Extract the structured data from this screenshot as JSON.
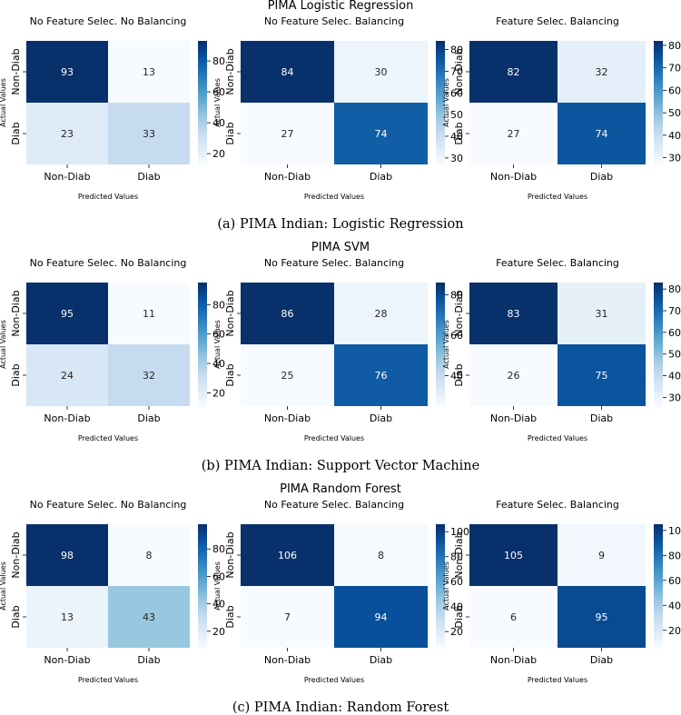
{
  "rows": [
    {
      "title": "PIMA Logistic Regression",
      "caption": "(a) PIMA Indian: Logistic Regression",
      "panels": [
        {
          "title": "No Feature Selec. No Balancing",
          "matrix": [
            [
              93,
              13
            ],
            [
              23,
              33
            ]
          ],
          "colorbar_ticks": [
            20,
            40,
            60,
            80
          ],
          "vmin": 13,
          "vmax": 93
        },
        {
          "title": "No Feature Selec. Balancing",
          "matrix": [
            [
              84,
              30
            ],
            [
              27,
              74
            ]
          ],
          "colorbar_ticks": [
            30,
            40,
            50,
            60,
            70,
            80
          ],
          "vmin": 27,
          "vmax": 84
        },
        {
          "title": "Feature Selec. Balancing",
          "matrix": [
            [
              82,
              32
            ],
            [
              27,
              74
            ]
          ],
          "colorbar_ticks": [
            30,
            40,
            50,
            60,
            70,
            80
          ],
          "vmin": 27,
          "vmax": 82
        }
      ]
    },
    {
      "title": "PIMA SVM",
      "caption": "(b) PIMA Indian: Support Vector Machine",
      "panels": [
        {
          "title": "No Feature Selec. No Balancing",
          "matrix": [
            [
              95,
              11
            ],
            [
              24,
              32
            ]
          ],
          "colorbar_ticks": [
            20,
            40,
            60,
            80
          ],
          "vmin": 11,
          "vmax": 95
        },
        {
          "title": "No Feature Selec. Balancing",
          "matrix": [
            [
              86,
              28
            ],
            [
              25,
              76
            ]
          ],
          "colorbar_ticks": [
            40,
            60,
            80
          ],
          "vmin": 25,
          "vmax": 86
        },
        {
          "title": "Feature Selec. Balancing",
          "matrix": [
            [
              83,
              31
            ],
            [
              26,
              75
            ]
          ],
          "colorbar_ticks": [
            30,
            40,
            50,
            60,
            70,
            80
          ],
          "vmin": 26,
          "vmax": 83
        }
      ]
    },
    {
      "title": "PIMA Random Forest",
      "caption": "(c) PIMA Indian: Random Forest",
      "panels": [
        {
          "title": "No Feature Selec. No Balancing",
          "matrix": [
            [
              98,
              8
            ],
            [
              13,
              43
            ]
          ],
          "colorbar_ticks": [
            20,
            40,
            60,
            80
          ],
          "vmin": 8,
          "vmax": 98
        },
        {
          "title": "No Feature Selec. Balancing",
          "matrix": [
            [
              106,
              8
            ],
            [
              7,
              94
            ]
          ],
          "colorbar_ticks": [
            20,
            40,
            60,
            80,
            100
          ],
          "vmin": 7,
          "vmax": 106
        },
        {
          "title": "Feature Selec. Balancing",
          "matrix": [
            [
              105,
              9
            ],
            [
              6,
              95
            ]
          ],
          "colorbar_ticks": [
            20,
            40,
            60,
            80,
            100
          ],
          "vmin": 6,
          "vmax": 105
        }
      ]
    }
  ],
  "labels": {
    "categories": [
      "Non-Diab",
      "Diab"
    ],
    "xlabel": "Predicted Values",
    "ylabel": "Actual Values"
  },
  "colors": {
    "cmap_low": "#f7fbff",
    "cmap_high": "#08306b",
    "text_dark": "#262626",
    "text_light": "#ffffff"
  },
  "chart_data": [
    {
      "type": "heatmap",
      "title": "PIMA Logistic Regression — No Feature Selec. No Balancing",
      "xlabel": "Predicted Values",
      "ylabel": "Actual Values",
      "categories": [
        "Non-Diab",
        "Diab"
      ],
      "values": [
        [
          93,
          13
        ],
        [
          23,
          33
        ]
      ]
    },
    {
      "type": "heatmap",
      "title": "PIMA Logistic Regression — No Feature Selec. Balancing",
      "xlabel": "Predicted Values",
      "ylabel": "Actual Values",
      "categories": [
        "Non-Diab",
        "Diab"
      ],
      "values": [
        [
          84,
          30
        ],
        [
          27,
          74
        ]
      ]
    },
    {
      "type": "heatmap",
      "title": "PIMA Logistic Regression — Feature Selec. Balancing",
      "xlabel": "Predicted Values",
      "ylabel": "Actual Values",
      "categories": [
        "Non-Diab",
        "Diab"
      ],
      "values": [
        [
          82,
          32
        ],
        [
          27,
          74
        ]
      ]
    },
    {
      "type": "heatmap",
      "title": "PIMA SVM — No Feature Selec. No Balancing",
      "xlabel": "Predicted Values",
      "ylabel": "Actual Values",
      "categories": [
        "Non-Diab",
        "Diab"
      ],
      "values": [
        [
          95,
          11
        ],
        [
          24,
          32
        ]
      ]
    },
    {
      "type": "heatmap",
      "title": "PIMA SVM — No Feature Selec. Balancing",
      "xlabel": "Predicted Values",
      "ylabel": "Actual Values",
      "categories": [
        "Non-Diab",
        "Diab"
      ],
      "values": [
        [
          86,
          28
        ],
        [
          25,
          76
        ]
      ]
    },
    {
      "type": "heatmap",
      "title": "PIMA SVM — Feature Selec. Balancing",
      "xlabel": "Predicted Values",
      "ylabel": "Actual Values",
      "categories": [
        "Non-Diab",
        "Diab"
      ],
      "values": [
        [
          83,
          31
        ],
        [
          26,
          75
        ]
      ]
    },
    {
      "type": "heatmap",
      "title": "PIMA Random Forest — No Feature Selec. No Balancing",
      "xlabel": "Predicted Values",
      "ylabel": "Actual Values",
      "categories": [
        "Non-Diab",
        "Diab"
      ],
      "values": [
        [
          98,
          8
        ],
        [
          13,
          43
        ]
      ]
    },
    {
      "type": "heatmap",
      "title": "PIMA Random Forest — No Feature Selec. Balancing",
      "xlabel": "Predicted Values",
      "ylabel": "Actual Values",
      "categories": [
        "Non-Diab",
        "Diab"
      ],
      "values": [
        [
          106,
          8
        ],
        [
          7,
          94
        ]
      ]
    },
    {
      "type": "heatmap",
      "title": "PIMA Random Forest — Feature Selec. Balancing",
      "xlabel": "Predicted Values",
      "ylabel": "Actual Values",
      "categories": [
        "Non-Diab",
        "Diab"
      ],
      "values": [
        [
          105,
          9
        ],
        [
          6,
          95
        ]
      ]
    }
  ]
}
